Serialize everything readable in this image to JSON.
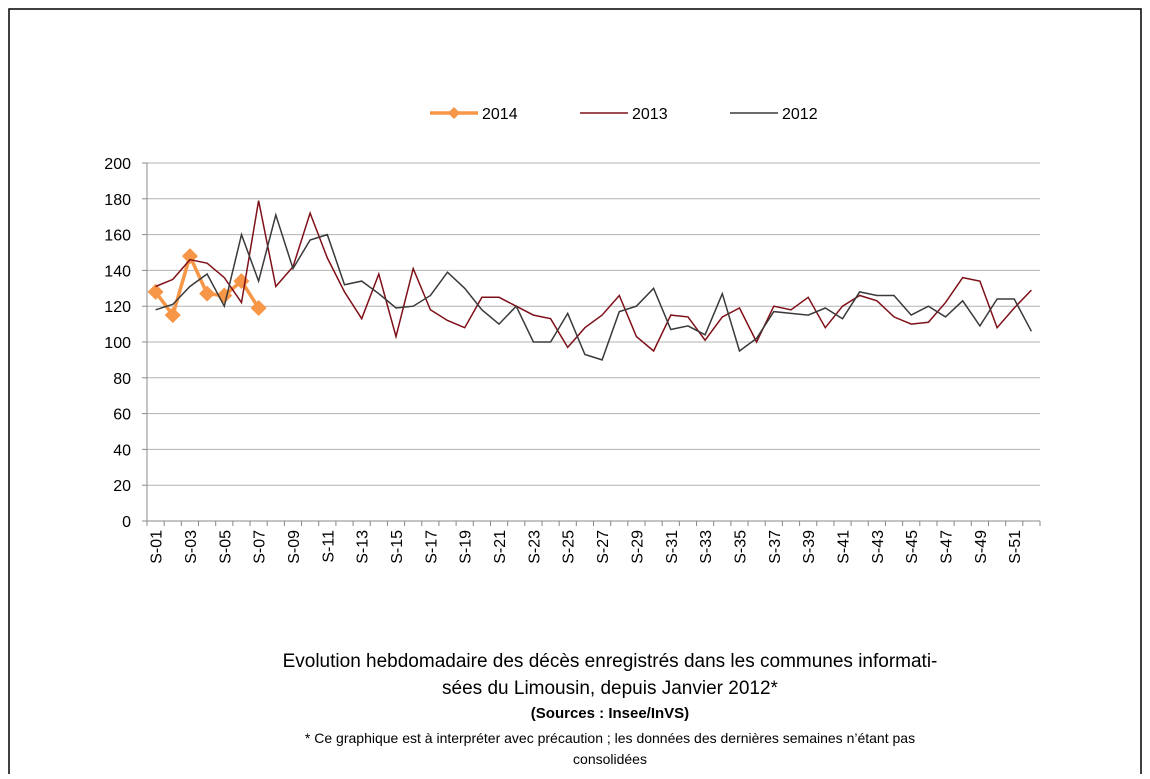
{
  "chart_data": {
    "type": "line",
    "title": [
      "Evolution hebdomadaire des décès enregistrés dans les communes informati-",
      "sées du Limousin, depuis Janvier  2012*"
    ],
    "source": "(Sources : Insee/InVS)",
    "note": [
      "* Ce graphique est à interpréter avec précaution ; les données des dernières semaines n’étant pas",
      "consolidées"
    ],
    "categories": [
      "S-01",
      null,
      "S-03",
      null,
      "S-05",
      null,
      "S-07",
      null,
      "S-09",
      null,
      "S-11",
      null,
      "S-13",
      null,
      "S-15",
      null,
      "S-17",
      null,
      "S-19",
      null,
      "S-21",
      null,
      "S-23",
      null,
      "S-25",
      null,
      "S-27",
      null,
      "S-29",
      null,
      "S-31",
      null,
      "S-33",
      null,
      "S-35",
      null,
      "S-37",
      null,
      "S-39",
      null,
      "S-41",
      null,
      "S-43",
      null,
      "S-45",
      null,
      "S-47",
      null,
      "S-49",
      null,
      "S-51",
      null
    ],
    "series": [
      {
        "name": "2014",
        "color": "#f79646",
        "marker": "diamond",
        "values": [
          128,
          115,
          148,
          127,
          126,
          134,
          119,
          null,
          null,
          null,
          null,
          null,
          null,
          null,
          null,
          null,
          null,
          null,
          null,
          null,
          null,
          null,
          null,
          null,
          null,
          null,
          null,
          null,
          null,
          null,
          null,
          null,
          null,
          null,
          null,
          null,
          null,
          null,
          null,
          null,
          null,
          null,
          null,
          null,
          null,
          null,
          null,
          null,
          null,
          null,
          null,
          null
        ]
      },
      {
        "name": "2013",
        "color": "#7f1018",
        "values": [
          131,
          135,
          146,
          144,
          136,
          122,
          179,
          131,
          142,
          172,
          147,
          128,
          113,
          138,
          103,
          141,
          118,
          112,
          108,
          125,
          125,
          120,
          115,
          113,
          97,
          108,
          115,
          126,
          103,
          95,
          115,
          114,
          101,
          114,
          119,
          100,
          120,
          118,
          125,
          108,
          120,
          126,
          123,
          114,
          110,
          111,
          122,
          136,
          134,
          108,
          119,
          129
        ]
      },
      {
        "name": "2012",
        "color": "#3a3a3a",
        "values": [
          118,
          121,
          131,
          138,
          120,
          160,
          134,
          171,
          141,
          157,
          160,
          132,
          134,
          127,
          119,
          120,
          126,
          139,
          130,
          118,
          110,
          120,
          100,
          100,
          116,
          93,
          90,
          117,
          120,
          130,
          107,
          109,
          104,
          127,
          95,
          102,
          117,
          116,
          115,
          119,
          113,
          128,
          126,
          126,
          115,
          120,
          114,
          123,
          109,
          124,
          124,
          106
        ]
      }
    ],
    "ylim": [
      0,
      200
    ],
    "yticks": [
      0,
      20,
      40,
      60,
      80,
      100,
      120,
      140,
      160,
      180,
      200
    ],
    "grid": true
  }
}
